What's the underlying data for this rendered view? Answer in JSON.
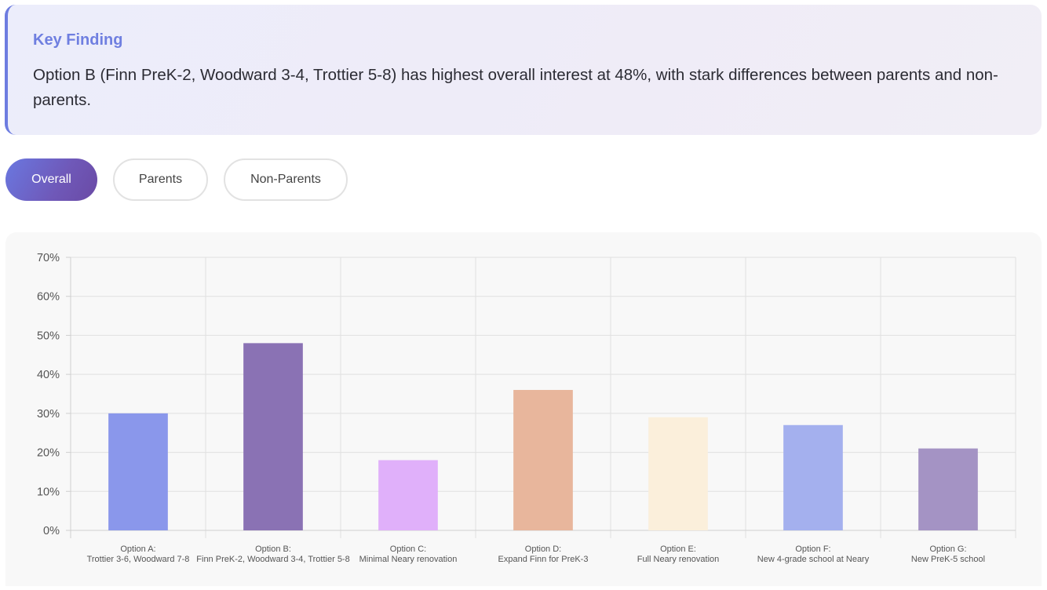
{
  "finding": {
    "title": "Key Finding",
    "text": "Option B (Finn PreK-2, Woodward 3-4, Trottier 5-8) has highest overall interest at 48%, with stark differences between parents and non-parents."
  },
  "tabs": [
    {
      "label": "Overall",
      "active": true
    },
    {
      "label": "Parents",
      "active": false
    },
    {
      "label": "Non-Parents",
      "active": false
    }
  ],
  "chart_data": {
    "type": "bar",
    "categories": [
      [
        "Option A:",
        "Trottier 3-6, Woodward 7-8"
      ],
      [
        "Option B:",
        "Finn PreK-2, Woodward 3-4, Trottier 5-8"
      ],
      [
        "Option C:",
        "Minimal Neary renovation"
      ],
      [
        "Option D:",
        "Expand Finn for PreK-3"
      ],
      [
        "Option E:",
        "Full Neary renovation"
      ],
      [
        "Option F:",
        "New 4-grade school at Neary"
      ],
      [
        "Option G:",
        "New PreK-5 school"
      ]
    ],
    "values": [
      30,
      48,
      18,
      36,
      29,
      27,
      21
    ],
    "colors": [
      "#8a97eb",
      "#8a72b4",
      "#e0b0fa",
      "#e8b69c",
      "#fbefdb",
      "#a4b0ee",
      "#a493c4"
    ],
    "ylim": [
      0,
      70
    ],
    "yticks": [
      "0%",
      "10%",
      "20%",
      "30%",
      "40%",
      "50%",
      "60%",
      "70%"
    ],
    "grid": true,
    "title": "",
    "xlabel": "",
    "ylabel": ""
  }
}
